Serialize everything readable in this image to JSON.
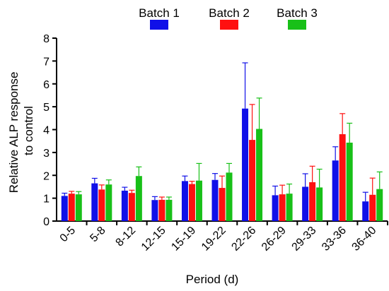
{
  "chart_data": {
    "type": "bar",
    "xlabel": "Period (d)",
    "ylabel_lines": [
      "Relative ALP response",
      "to control"
    ],
    "ylim": [
      0,
      8
    ],
    "yticks": [
      0,
      1,
      2,
      3,
      4,
      5,
      6,
      7,
      8
    ],
    "legend_placement": "top",
    "categories": [
      "0-5",
      "5-8",
      "8-12",
      "12-15",
      "15-19",
      "19-22",
      "22-26",
      "26-29",
      "29-33",
      "33-36",
      "36-40"
    ],
    "series": [
      {
        "name": "Batch 1",
        "color": "#1010e8",
        "values": [
          1.1,
          1.65,
          1.33,
          0.92,
          1.75,
          1.8,
          4.92,
          1.13,
          1.5,
          2.65,
          0.86
        ],
        "errors": [
          0.12,
          0.22,
          0.15,
          0.15,
          0.22,
          0.28,
          2.0,
          0.4,
          0.57,
          0.6,
          0.4
        ]
      },
      {
        "name": "Batch 2",
        "color": "#ff1010",
        "values": [
          1.2,
          1.38,
          1.23,
          0.93,
          1.62,
          1.45,
          3.55,
          1.17,
          1.7,
          3.8,
          1.15
        ],
        "errors": [
          0.1,
          0.2,
          0.12,
          0.12,
          0.12,
          0.52,
          1.55,
          0.4,
          0.7,
          0.9,
          0.73
        ]
      },
      {
        "name": "Batch 3",
        "color": "#18c018",
        "values": [
          1.17,
          1.6,
          1.97,
          0.93,
          1.77,
          2.12,
          4.03,
          1.2,
          1.47,
          3.43,
          1.4
        ],
        "errors": [
          0.12,
          0.2,
          0.4,
          0.12,
          0.75,
          0.4,
          1.35,
          0.42,
          0.8,
          0.85,
          0.75
        ]
      }
    ]
  }
}
